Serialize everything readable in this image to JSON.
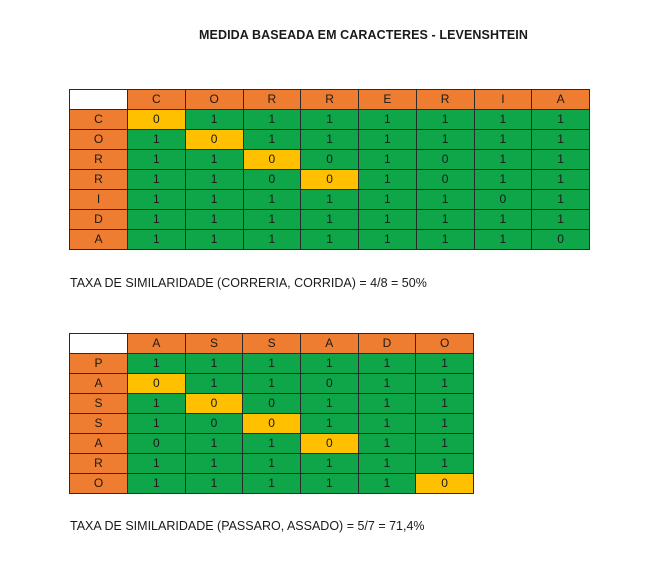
{
  "title": "MEDIDA BASEADA EM CARACTERES - LEVENSHTEIN",
  "colors": {
    "header": "#ee7d31",
    "diff": "#0fa64a",
    "match": "#ffc000"
  },
  "table1": {
    "columns": [
      "C",
      "O",
      "R",
      "R",
      "E",
      "R",
      "I",
      "A"
    ],
    "rows": [
      {
        "label": "C",
        "cells": [
          "0",
          "1",
          "1",
          "1",
          "1",
          "1",
          "1",
          "1"
        ],
        "match": [
          0
        ]
      },
      {
        "label": "O",
        "cells": [
          "1",
          "0",
          "1",
          "1",
          "1",
          "1",
          "1",
          "1"
        ],
        "match": [
          1
        ]
      },
      {
        "label": "R",
        "cells": [
          "1",
          "1",
          "0",
          "0",
          "1",
          "0",
          "1",
          "1"
        ],
        "match": [
          2
        ]
      },
      {
        "label": "R",
        "cells": [
          "1",
          "1",
          "0",
          "0",
          "1",
          "0",
          "1",
          "1"
        ],
        "match": [
          3
        ]
      },
      {
        "label": "I",
        "cells": [
          "1",
          "1",
          "1",
          "1",
          "1",
          "1",
          "0",
          "1"
        ],
        "match": []
      },
      {
        "label": "D",
        "cells": [
          "1",
          "1",
          "1",
          "1",
          "1",
          "1",
          "1",
          "1"
        ],
        "match": []
      },
      {
        "label": "A",
        "cells": [
          "1",
          "1",
          "1",
          "1",
          "1",
          "1",
          "1",
          "0"
        ],
        "match": []
      }
    ]
  },
  "caption1": "TAXA DE SIMILARIDADE (CORRERIA, CORRIDA) = 4/8 = 50%",
  "table2": {
    "columns": [
      "A",
      "S",
      "S",
      "A",
      "D",
      "O"
    ],
    "rows": [
      {
        "label": "P",
        "cells": [
          "1",
          "1",
          "1",
          "1",
          "1",
          "1"
        ],
        "match": []
      },
      {
        "label": "A",
        "cells": [
          "0",
          "1",
          "1",
          "0",
          "1",
          "1"
        ],
        "match": [
          0
        ]
      },
      {
        "label": "S",
        "cells": [
          "1",
          "0",
          "0",
          "1",
          "1",
          "1"
        ],
        "match": [
          1
        ]
      },
      {
        "label": "S",
        "cells": [
          "1",
          "0",
          "0",
          "1",
          "1",
          "1"
        ],
        "match": [
          2
        ]
      },
      {
        "label": "A",
        "cells": [
          "0",
          "1",
          "1",
          "0",
          "1",
          "1"
        ],
        "match": [
          3
        ]
      },
      {
        "label": "R",
        "cells": [
          "1",
          "1",
          "1",
          "1",
          "1",
          "1"
        ],
        "match": []
      },
      {
        "label": "O",
        "cells": [
          "1",
          "1",
          "1",
          "1",
          "1",
          "0"
        ],
        "match": [
          5
        ]
      }
    ]
  },
  "caption2": "TAXA DE SIMILARIDADE (PASSARO, ASSADO) = 5/7 = 71,4%"
}
